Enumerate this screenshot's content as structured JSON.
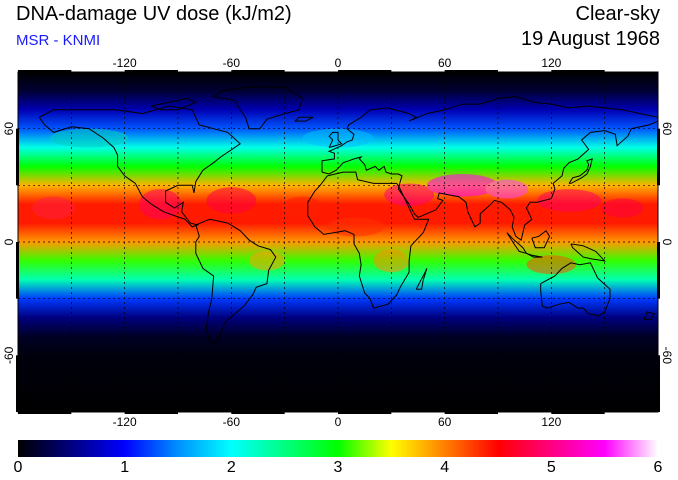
{
  "header": {
    "title": "DNA-damage UV dose (kJ/m2)",
    "source": "MSR - KNMI",
    "condition": "Clear-sky",
    "date": "19 August 1968"
  },
  "colors": {
    "source_text": "#1a1aff"
  },
  "map": {
    "projection": "equirectangular",
    "lon_range": [
      -180,
      180
    ],
    "lat_range": [
      -90,
      90
    ],
    "grid": true,
    "grid_spacing_deg": 30,
    "lon_ticks": [
      -120,
      -60,
      0,
      60,
      120
    ],
    "lon_tick_labels": [
      "-120",
      "-60",
      "0",
      "60",
      "120"
    ],
    "lat_ticks": [
      -60,
      0,
      60
    ],
    "lat_tick_labels": [
      "-60",
      "0",
      "60"
    ],
    "coastlines": true
  },
  "colorbar": {
    "min": 0,
    "max": 6,
    "tick_labels": [
      "0",
      "1",
      "2",
      "3",
      "4",
      "5",
      "6"
    ],
    "stops": [
      {
        "value": 0.0,
        "color": "#000000"
      },
      {
        "value": 0.5,
        "color": "#000080"
      },
      {
        "value": 1.0,
        "color": "#0000ff"
      },
      {
        "value": 1.5,
        "color": "#0090ff"
      },
      {
        "value": 2.0,
        "color": "#00ffff"
      },
      {
        "value": 2.5,
        "color": "#00ff80"
      },
      {
        "value": 3.0,
        "color": "#00ff00"
      },
      {
        "value": 3.5,
        "color": "#ffff00"
      },
      {
        "value": 4.0,
        "color": "#ff8000"
      },
      {
        "value": 4.5,
        "color": "#ff0000"
      },
      {
        "value": 5.0,
        "color": "#ff0080"
      },
      {
        "value": 5.5,
        "color": "#ff00ff"
      },
      {
        "value": 6.0,
        "color": "#ffffff"
      }
    ]
  },
  "dose_profile": [
    {
      "lat": 90,
      "value": 0.0
    },
    {
      "lat": 80,
      "value": 0.2
    },
    {
      "lat": 70,
      "value": 0.7
    },
    {
      "lat": 60,
      "value": 1.3
    },
    {
      "lat": 50,
      "value": 2.1
    },
    {
      "lat": 40,
      "value": 3.0
    },
    {
      "lat": 30,
      "value": 3.8
    },
    {
      "lat": 20,
      "value": 4.4
    },
    {
      "lat": 10,
      "value": 4.4
    },
    {
      "lat": 0,
      "value": 3.9
    },
    {
      "lat": -10,
      "value": 3.1
    },
    {
      "lat": -20,
      "value": 2.3
    },
    {
      "lat": -30,
      "value": 1.2
    },
    {
      "lat": -40,
      "value": 0.5
    },
    {
      "lat": -50,
      "value": 0.15
    },
    {
      "lat": -60,
      "value": 0.05
    },
    {
      "lat": -90,
      "value": 0.0
    }
  ]
}
